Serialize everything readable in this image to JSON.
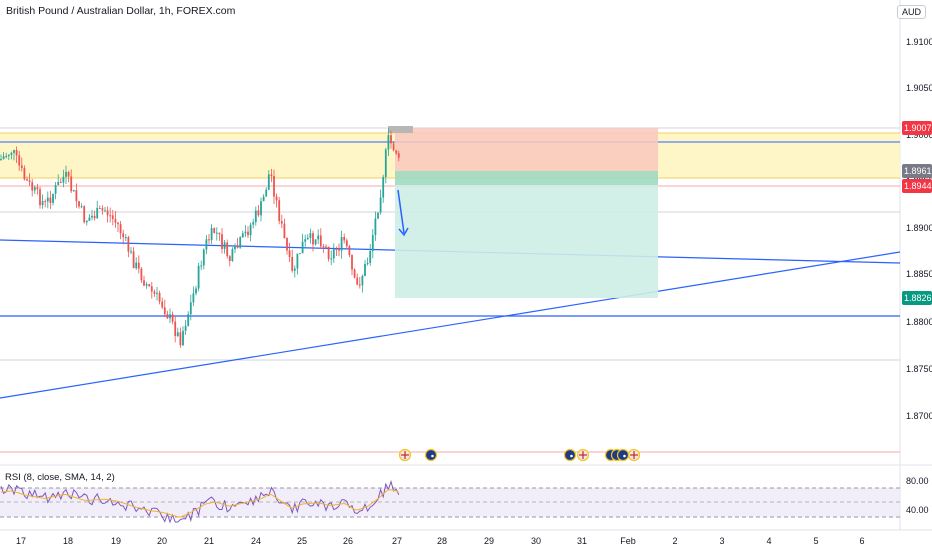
{
  "header": {
    "symbol_title": "British Pound / Australian Dollar, 1h, FOREX.com",
    "currency_badge": "AUD"
  },
  "price_axis": {
    "labels": [
      "1.91000",
      "1.90500",
      "1.90000",
      "1.89500",
      "1.89000",
      "1.88500",
      "1.88000",
      "1.87500",
      "1.87000"
    ],
    "tags": [
      {
        "text": "1.90072",
        "color": "#f23645"
      },
      {
        "text": "1.89619",
        "color": "#787b86"
      },
      {
        "text": "1.89445",
        "color": "#f23645"
      },
      {
        "text": "1.88266",
        "color": "#089981"
      }
    ]
  },
  "rsi": {
    "label": "RSI (8, close, SMA, 14, 2)",
    "levels": [
      "80.00",
      "40.00"
    ]
  },
  "time_axis": {
    "labels": [
      "17",
      "18",
      "19",
      "20",
      "21",
      "24",
      "25",
      "26",
      "27",
      "28",
      "29",
      "30",
      "31",
      "Feb",
      "2",
      "3",
      "4",
      "5",
      "6"
    ]
  },
  "colors": {
    "zone_yellow": "#fff6c7",
    "stop_red": "#f9c8bd",
    "target_green": "#cdeee6",
    "trendline_blue": "#2962ff",
    "candle_up": "#26a69a",
    "candle_down": "#ef5350"
  },
  "event_icons": [
    "gbp-flag-icon",
    "aud-flag-icon",
    "aud-flag-icon",
    "gbp-flag-icon",
    "aud-flag-icon",
    "aud-flag-icon",
    "aud-flag-icon",
    "gbp-flag-icon"
  ]
}
